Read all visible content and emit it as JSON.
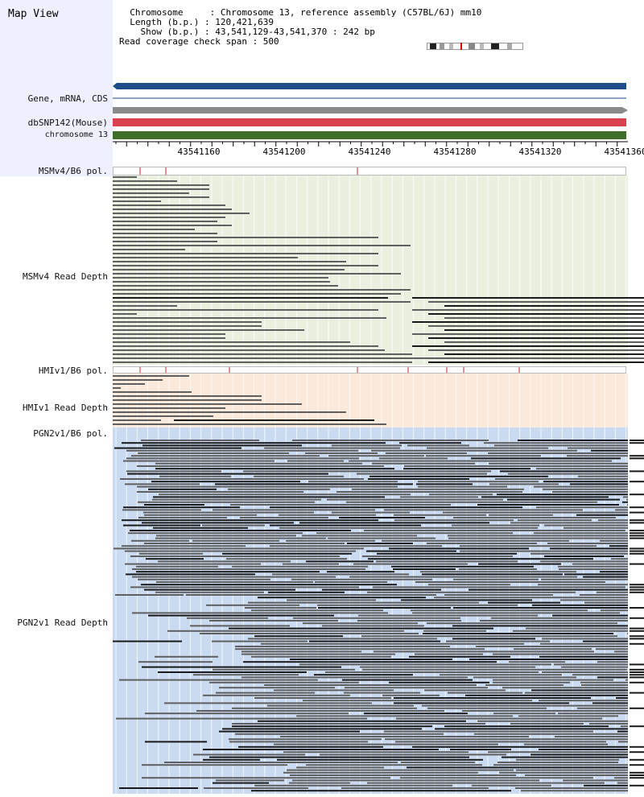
{
  "sidebar": {
    "title": "Map View",
    "gene_label": "Gene, mRNA, CDS",
    "dbsnp_label": "dbSNP142(Mouse)",
    "chrom_label": "chromosome 13",
    "msm_pol_label": "MSMv4/B6 pol.",
    "msm_depth_label": "MSMv4 Read Depth",
    "hmi_pol_label": "HMIv1/B6 pol.",
    "hmi_depth_label": "HMIv1 Read Depth",
    "pgn_pol_label": "PGN2v1/B6 pol.",
    "pgn_depth_label": "PGN2v1 Read Depth"
  },
  "info": {
    "line1": "  Chromosome     : Chromosome 13, reference assembly (C57BL/6J) mm10",
    "line2": "  Length (b.p.) : 120,421,639",
    "line3": "    Show (b.p.) : 43,541,129-43,541,370 : 242 bp",
    "line4": "Read coverage check span : 500"
  },
  "ruler": {
    "labels": [
      "43541160",
      "43541200",
      "43541240",
      "43541280",
      "43541320",
      "43541360"
    ]
  },
  "colors": {
    "gene_blue": "#1d4e89",
    "mrna_gray": "#8a8a8a",
    "dbsnp_red": "#d8424f",
    "chrom_green": "#3f6e2a",
    "msm_bg": "#eaf0e0",
    "hmi_bg": "#fbe9dc",
    "pgn_bg": "#c9daf1",
    "read_gray": "#5f5f5f",
    "read_dark": "#1a1a1a",
    "pol_tick": "#c0272d"
  }
}
